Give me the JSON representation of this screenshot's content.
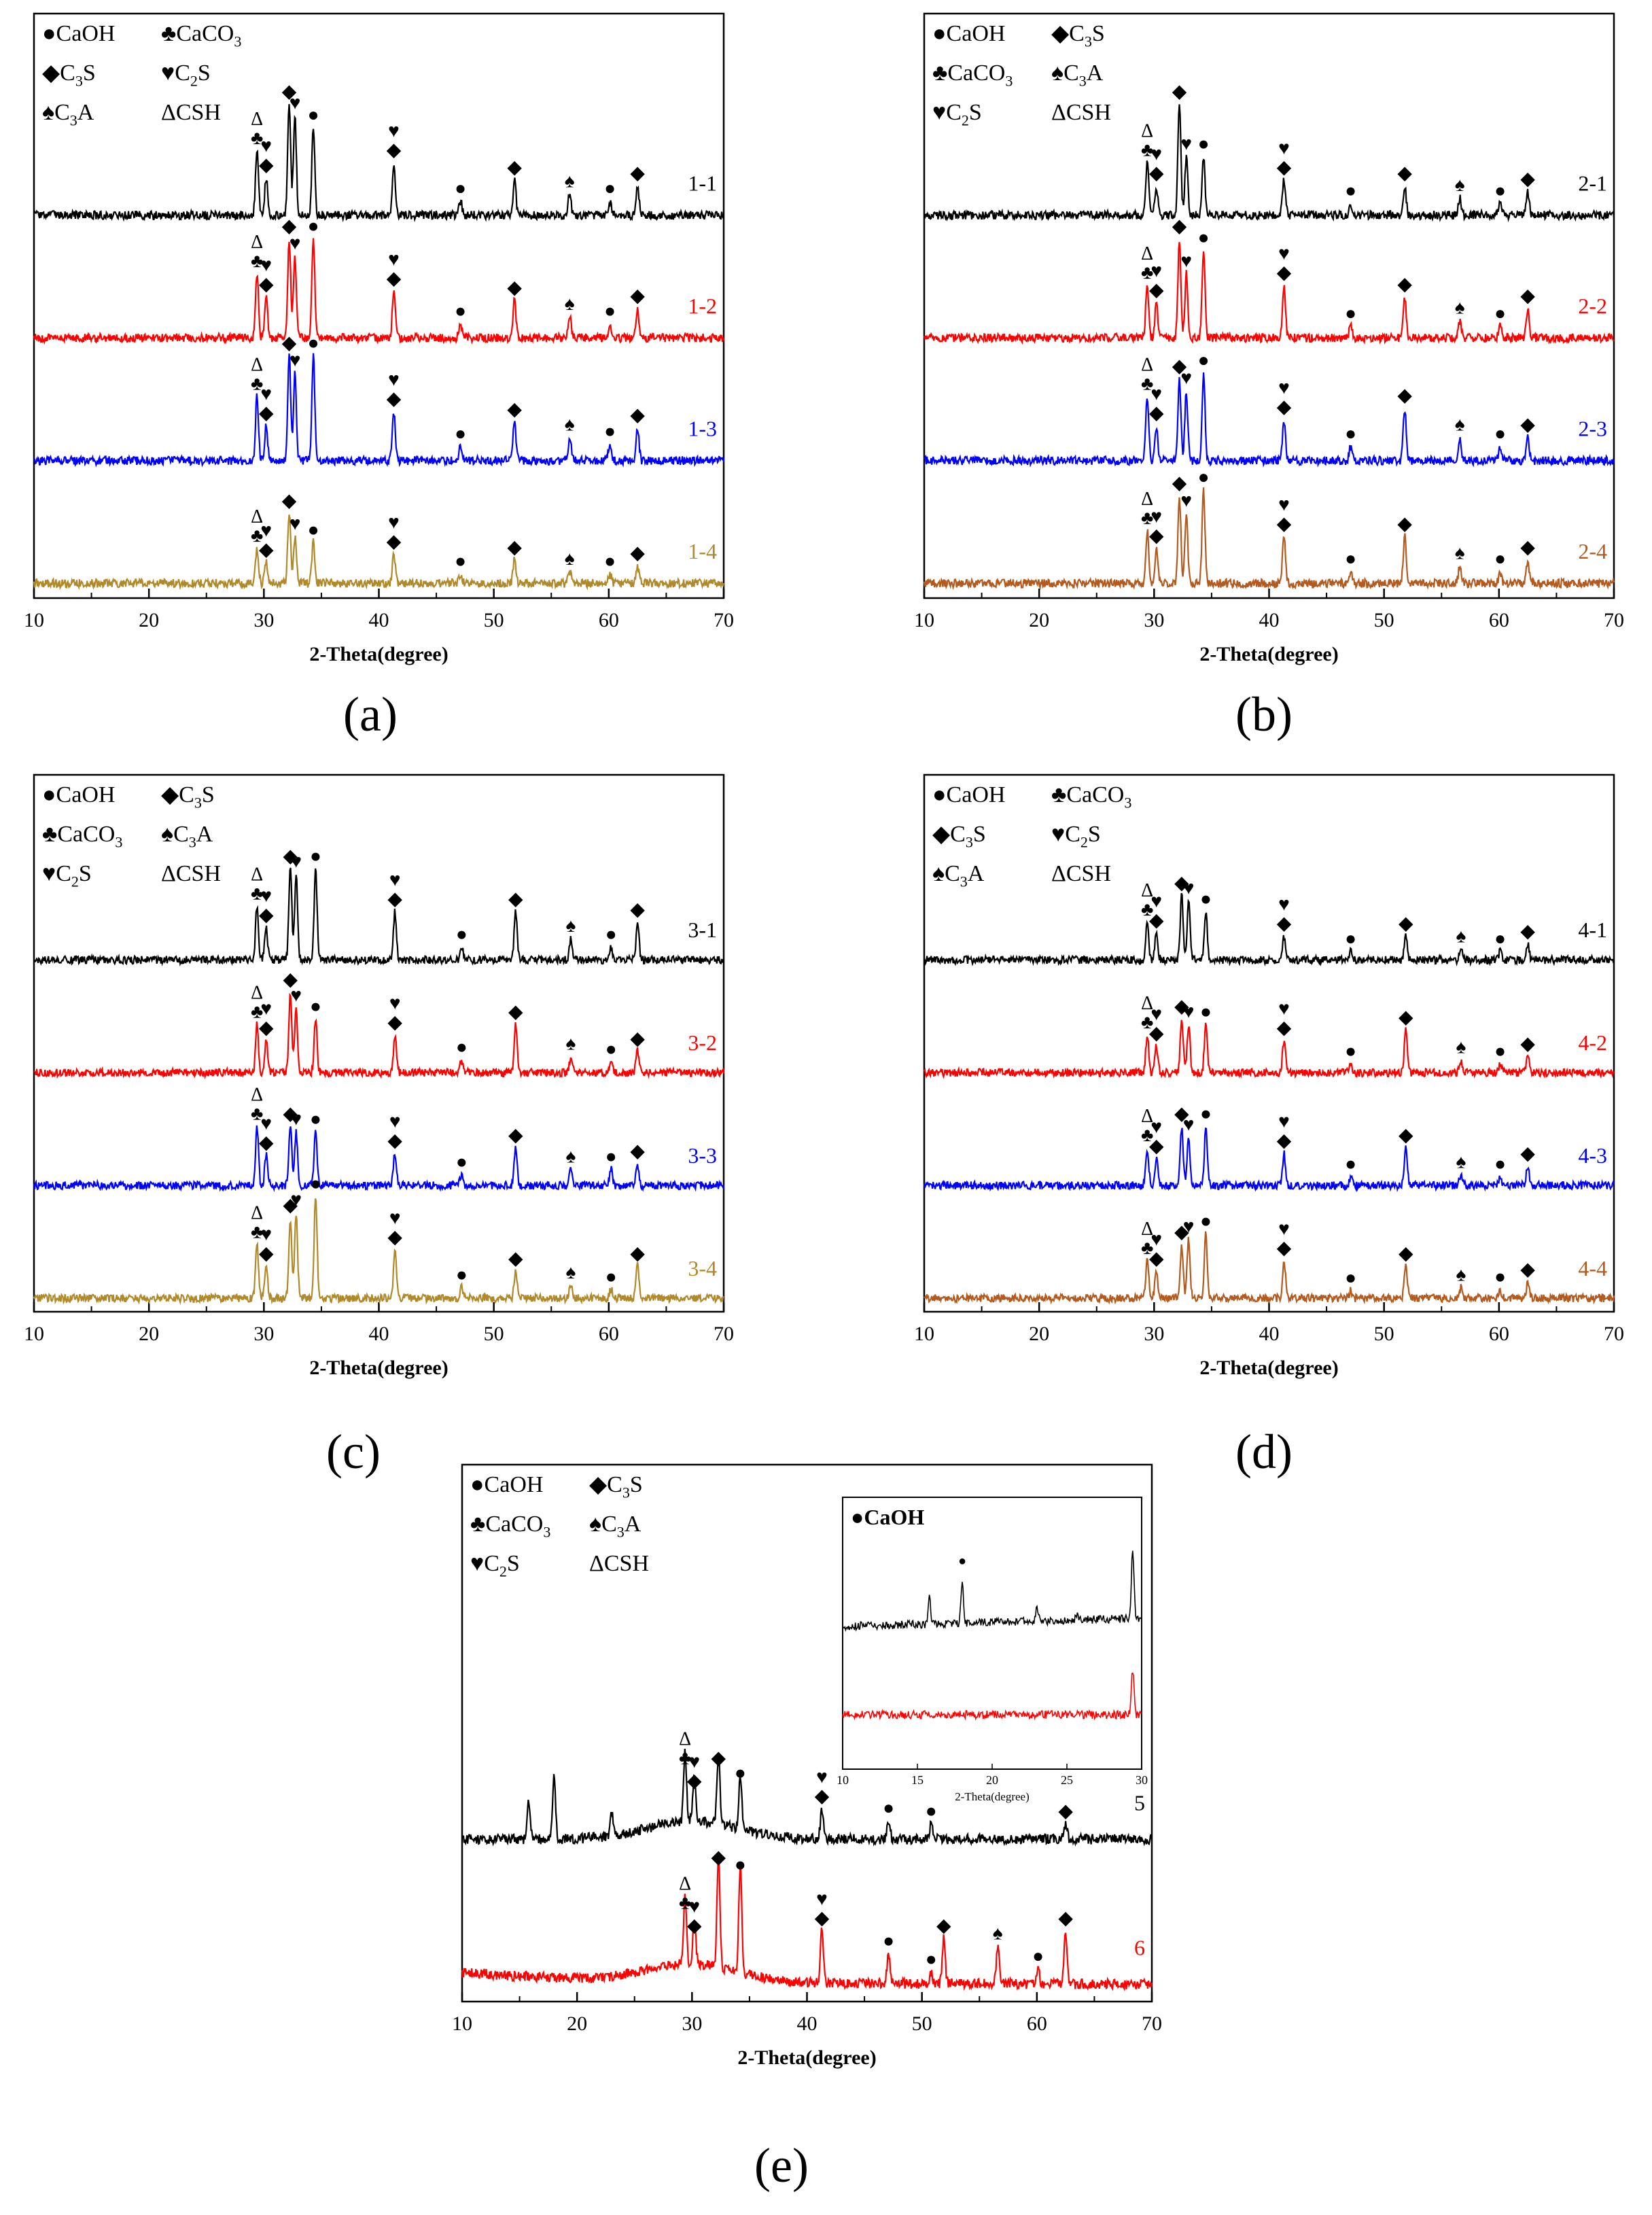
{
  "figure": {
    "panel_labels": [
      "(a)",
      "(b)",
      "(c)",
      "(d)",
      "(e)"
    ],
    "xlabel": "2-Theta(degree)",
    "x_ticks": [
      10,
      20,
      30,
      40,
      50,
      60,
      70
    ],
    "inset_title": "CaOH",
    "inset_xlabel": "2-Theta(degree)",
    "inset_ticks": [
      10,
      15,
      20,
      25,
      30
    ],
    "colors": {
      "black": "#000000",
      "red": "#ff0000",
      "blue": "#0000ff",
      "gold": "#b08a2a",
      "brown": "#b35a1f"
    }
  },
  "chart_data": [
    {
      "type": "line",
      "panel": "(a)",
      "xlabel": "2-Theta(degree)",
      "ylabel": "",
      "xlim": [
        10,
        70
      ],
      "legend": [
        {
          "symbol": "●",
          "name": "CaOH"
        },
        {
          "symbol": "♣",
          "name": "CaCO3"
        },
        {
          "symbol": "◆",
          "name": "C3S"
        },
        {
          "symbol": "♥",
          "name": "C2S"
        },
        {
          "symbol": "♠",
          "name": "C3A"
        },
        {
          "symbol": "Δ",
          "name": "CSH"
        }
      ],
      "series": [
        {
          "name": "1-1",
          "color": "#000000"
        },
        {
          "name": "1-2",
          "color": "#ff0000"
        },
        {
          "name": "1-3",
          "color": "#0000ff"
        },
        {
          "name": "1-4",
          "color": "#b08a2a"
        }
      ],
      "peaks": [
        {
          "x": 29.4,
          "phases": [
            "CSH",
            "CaCO3"
          ],
          "h": [
            0.55,
            0.55,
            0.55,
            0.3
          ]
        },
        {
          "x": 30.2,
          "phases": [
            "C2S",
            "C3S"
          ],
          "h": [
            0.32,
            0.35,
            0.3,
            0.18
          ]
        },
        {
          "x": 32.2,
          "phases": [
            "C3S"
          ],
          "h": [
            0.95,
            0.85,
            0.9,
            0.6
          ]
        },
        {
          "x": 32.7,
          "phases": [
            "C2S"
          ],
          "h": [
            0.85,
            0.7,
            0.75,
            0.4
          ]
        },
        {
          "x": 34.3,
          "phases": [
            "CaOH"
          ],
          "h": [
            0.75,
            0.85,
            0.9,
            0.35
          ]
        },
        {
          "x": 41.3,
          "phases": [
            "C2S",
            "C3S"
          ],
          "h": [
            0.45,
            0.4,
            0.42,
            0.25
          ]
        },
        {
          "x": 47.1,
          "phases": [
            "CaOH"
          ],
          "h": [
            0.12,
            0.12,
            0.12,
            0.08
          ]
        },
        {
          "x": 51.8,
          "phases": [
            "C3S"
          ],
          "h": [
            0.3,
            0.32,
            0.33,
            0.2
          ]
        },
        {
          "x": 56.6,
          "phases": [
            "C3A"
          ],
          "h": [
            0.18,
            0.18,
            0.2,
            0.1
          ]
        },
        {
          "x": 60.1,
          "phases": [
            "CaOH"
          ],
          "h": [
            0.12,
            0.12,
            0.14,
            0.08
          ]
        },
        {
          "x": 62.5,
          "phases": [
            "C3S"
          ],
          "h": [
            0.25,
            0.25,
            0.28,
            0.15
          ]
        }
      ]
    },
    {
      "type": "line",
      "panel": "(b)",
      "xlabel": "2-Theta(degree)",
      "ylabel": "",
      "xlim": [
        10,
        70
      ],
      "legend": [
        {
          "symbol": "●",
          "name": "CaOH"
        },
        {
          "symbol": "◆",
          "name": "C3S"
        },
        {
          "symbol": "♣",
          "name": "CaCO3"
        },
        {
          "symbol": "♠",
          "name": "C3A"
        },
        {
          "symbol": "♥",
          "name": "C2S"
        },
        {
          "symbol": "Δ",
          "name": "CSH"
        }
      ],
      "series": [
        {
          "name": "2-1",
          "color": "#000000"
        },
        {
          "name": "2-2",
          "color": "#ff0000"
        },
        {
          "name": "2-3",
          "color": "#0000ff"
        },
        {
          "name": "2-4",
          "color": "#b35a1f"
        }
      ],
      "peaks": [
        {
          "x": 29.4,
          "phases": [
            "CSH",
            "CaCO3"
          ],
          "h": [
            0.45,
            0.45,
            0.55,
            0.45
          ]
        },
        {
          "x": 30.2,
          "phases": [
            "C2S",
            "C3S"
          ],
          "h": [
            0.25,
            0.3,
            0.3,
            0.3
          ]
        },
        {
          "x": 32.2,
          "phases": [
            "C3S"
          ],
          "h": [
            0.95,
            0.85,
            0.7,
            0.75
          ]
        },
        {
          "x": 32.8,
          "phases": [
            "C2S"
          ],
          "h": [
            0.5,
            0.55,
            0.6,
            0.6
          ]
        },
        {
          "x": 34.3,
          "phases": [
            "CaOH"
          ],
          "h": [
            0.5,
            0.75,
            0.75,
            0.8
          ]
        },
        {
          "x": 41.3,
          "phases": [
            "C2S",
            "C3S"
          ],
          "h": [
            0.3,
            0.45,
            0.35,
            0.4
          ]
        },
        {
          "x": 47.1,
          "phases": [
            "CaOH"
          ],
          "h": [
            0.1,
            0.1,
            0.12,
            0.1
          ]
        },
        {
          "x": 51.8,
          "phases": [
            "C3S"
          ],
          "h": [
            0.25,
            0.35,
            0.45,
            0.4
          ]
        },
        {
          "x": 56.6,
          "phases": [
            "C3A"
          ],
          "h": [
            0.15,
            0.15,
            0.2,
            0.15
          ]
        },
        {
          "x": 60.1,
          "phases": [
            "CaOH"
          ],
          "h": [
            0.1,
            0.1,
            0.12,
            0.1
          ]
        },
        {
          "x": 62.5,
          "phases": [
            "C3S"
          ],
          "h": [
            0.2,
            0.25,
            0.2,
            0.2
          ]
        }
      ]
    },
    {
      "type": "line",
      "panel": "(c)",
      "xlabel": "2-Theta(degree)",
      "ylabel": "",
      "xlim": [
        10,
        70
      ],
      "legend": [
        {
          "symbol": "●",
          "name": "CaOH"
        },
        {
          "symbol": "◆",
          "name": "C3S"
        },
        {
          "symbol": "♣",
          "name": "CaCO3"
        },
        {
          "symbol": "♠",
          "name": "C3A"
        },
        {
          "symbol": "♥",
          "name": "C2S"
        },
        {
          "symbol": "Δ",
          "name": "CSH"
        }
      ],
      "series": [
        {
          "name": "3-1",
          "color": "#000000"
        },
        {
          "name": "3-2",
          "color": "#ff0000"
        },
        {
          "name": "3-3",
          "color": "#0000ff"
        },
        {
          "name": "3-4",
          "color": "#b08a2a"
        }
      ],
      "peaks": [
        {
          "x": 29.4,
          "phases": [
            "CSH",
            "CaCO3"
          ],
          "h": [
            0.5,
            0.45,
            0.55,
            0.5
          ]
        },
        {
          "x": 30.2,
          "phases": [
            "C2S",
            "C3S"
          ],
          "h": [
            0.3,
            0.3,
            0.28,
            0.3
          ]
        },
        {
          "x": 32.3,
          "phases": [
            "C3S"
          ],
          "h": [
            0.85,
            0.75,
            0.55,
            0.75
          ]
        },
        {
          "x": 32.8,
          "phases": [
            "C2S"
          ],
          "h": [
            0.8,
            0.6,
            0.5,
            0.8
          ]
        },
        {
          "x": 34.5,
          "phases": [
            "CaOH"
          ],
          "h": [
            0.85,
            0.5,
            0.5,
            0.95
          ]
        },
        {
          "x": 41.4,
          "phases": [
            "C2S",
            "C3S"
          ],
          "h": [
            0.45,
            0.35,
            0.3,
            0.45
          ]
        },
        {
          "x": 47.2,
          "phases": [
            "CaOH"
          ],
          "h": [
            0.12,
            0.12,
            0.1,
            0.1
          ]
        },
        {
          "x": 51.9,
          "phases": [
            "C3S"
          ],
          "h": [
            0.45,
            0.45,
            0.35,
            0.25
          ]
        },
        {
          "x": 56.7,
          "phases": [
            "C3A"
          ],
          "h": [
            0.2,
            0.15,
            0.15,
            0.12
          ]
        },
        {
          "x": 60.2,
          "phases": [
            "CaOH"
          ],
          "h": [
            0.12,
            0.1,
            0.15,
            0.08
          ]
        },
        {
          "x": 62.5,
          "phases": [
            "C3S"
          ],
          "h": [
            0.35,
            0.2,
            0.2,
            0.3
          ]
        }
      ]
    },
    {
      "type": "line",
      "panel": "(d)",
      "xlabel": "2-Theta(degree)",
      "ylabel": "",
      "xlim": [
        10,
        70
      ],
      "legend": [
        {
          "symbol": "●",
          "name": "CaOH"
        },
        {
          "symbol": "♣",
          "name": "CaCO3"
        },
        {
          "symbol": "◆",
          "name": "C3S"
        },
        {
          "symbol": "♥",
          "name": "C2S"
        },
        {
          "symbol": "♠",
          "name": "C3A"
        },
        {
          "symbol": "Δ",
          "name": "CSH"
        }
      ],
      "series": [
        {
          "name": "4-1",
          "color": "#000000"
        },
        {
          "name": "4-2",
          "color": "#ff0000"
        },
        {
          "name": "4-3",
          "color": "#0000ff"
        },
        {
          "name": "4-4",
          "color": "#b35a1f"
        }
      ],
      "peaks": [
        {
          "x": 29.4,
          "phases": [
            "CSH",
            "CaCO3"
          ],
          "h": [
            0.35,
            0.35,
            0.35,
            0.35
          ]
        },
        {
          "x": 30.2,
          "phases": [
            "C2S",
            "C3S"
          ],
          "h": [
            0.25,
            0.25,
            0.25,
            0.25
          ]
        },
        {
          "x": 32.4,
          "phases": [
            "C3S"
          ],
          "h": [
            0.6,
            0.5,
            0.55,
            0.5
          ]
        },
        {
          "x": 33.0,
          "phases": [
            "C2S"
          ],
          "h": [
            0.55,
            0.45,
            0.45,
            0.55
          ]
        },
        {
          "x": 34.5,
          "phases": [
            "CaOH"
          ],
          "h": [
            0.45,
            0.45,
            0.55,
            0.6
          ]
        },
        {
          "x": 41.3,
          "phases": [
            "C2S",
            "C3S"
          ],
          "h": [
            0.22,
            0.3,
            0.3,
            0.35
          ]
        },
        {
          "x": 47.1,
          "phases": [
            "CaOH"
          ],
          "h": [
            0.08,
            0.08,
            0.08,
            0.07
          ]
        },
        {
          "x": 51.9,
          "phases": [
            "C3S"
          ],
          "h": [
            0.22,
            0.4,
            0.35,
            0.3
          ]
        },
        {
          "x": 56.7,
          "phases": [
            "C3A"
          ],
          "h": [
            0.1,
            0.12,
            0.1,
            0.1
          ]
        },
        {
          "x": 60.1,
          "phases": [
            "CaOH"
          ],
          "h": [
            0.08,
            0.08,
            0.08,
            0.08
          ]
        },
        {
          "x": 62.5,
          "phases": [
            "C3S"
          ],
          "h": [
            0.15,
            0.15,
            0.18,
            0.15
          ]
        }
      ]
    },
    {
      "type": "line",
      "panel": "(e)",
      "xlabel": "2-Theta(degree)",
      "ylabel": "",
      "xlim": [
        10,
        70
      ],
      "legend": [
        {
          "symbol": "●",
          "name": "CaOH"
        },
        {
          "symbol": "◆",
          "name": "C3S"
        },
        {
          "symbol": "♣",
          "name": "CaCO3"
        },
        {
          "symbol": "♠",
          "name": "C3A"
        },
        {
          "symbol": "♥",
          "name": "C2S"
        },
        {
          "symbol": "Δ",
          "name": "CSH"
        }
      ],
      "series": [
        {
          "name": "5",
          "color": "#000000"
        },
        {
          "name": "6",
          "color": "#ff0000"
        }
      ],
      "peaks": [
        {
          "x": 15.8,
          "phases": [],
          "h": [
            0.25,
            0.0
          ]
        },
        {
          "x": 18.0,
          "phases": [],
          "h": [
            0.4,
            0.0
          ]
        },
        {
          "x": 23.0,
          "phases": [],
          "h": [
            0.15,
            0.0
          ]
        },
        {
          "x": 29.4,
          "phases": [
            "CSH",
            "CaCO3"
          ],
          "h": [
            0.45,
            0.45
          ]
        },
        {
          "x": 30.2,
          "phases": [
            "C2S",
            "C3S"
          ],
          "h": [
            0.3,
            0.3
          ]
        },
        {
          "x": 32.3,
          "phases": [
            "C3S"
          ],
          "h": [
            0.45,
            0.75
          ]
        },
        {
          "x": 34.2,
          "phases": [
            "CaOH"
          ],
          "h": [
            0.35,
            0.7
          ]
        },
        {
          "x": 41.3,
          "phases": [
            "C2S",
            "C3S"
          ],
          "h": [
            0.2,
            0.35
          ]
        },
        {
          "x": 47.1,
          "phases": [
            "CaOH"
          ],
          "h": [
            0.12,
            0.2
          ]
        },
        {
          "x": 50.8,
          "phases": [
            "CaOH"
          ],
          "h": [
            0.1,
            0.08
          ]
        },
        {
          "x": 51.9,
          "phases": [
            "C3S"
          ],
          "h": [
            0.0,
            0.3
          ]
        },
        {
          "x": 56.6,
          "phases": [
            "C3A"
          ],
          "h": [
            0.0,
            0.25
          ]
        },
        {
          "x": 60.1,
          "phases": [
            "CaOH"
          ],
          "h": [
            0.0,
            0.1
          ]
        },
        {
          "x": 62.5,
          "phases": [
            "C3S"
          ],
          "h": [
            0.1,
            0.35
          ]
        }
      ],
      "inset": {
        "title": "CaOH",
        "xlabel": "2-Theta(degree)",
        "xlim": [
          10,
          30
        ],
        "series": [
          "5",
          "6"
        ],
        "peaks_5": [
          {
            "x": 15.8,
            "h": 0.35
          },
          {
            "x": 18.0,
            "h": 0.55
          },
          {
            "x": 23.0,
            "h": 0.2
          },
          {
            "x": 25.7,
            "h": 0.1
          },
          {
            "x": 29.4,
            "h": 0.9
          }
        ],
        "peaks_6": [
          {
            "x": 29.4,
            "h": 0.6
          }
        ]
      }
    }
  ]
}
